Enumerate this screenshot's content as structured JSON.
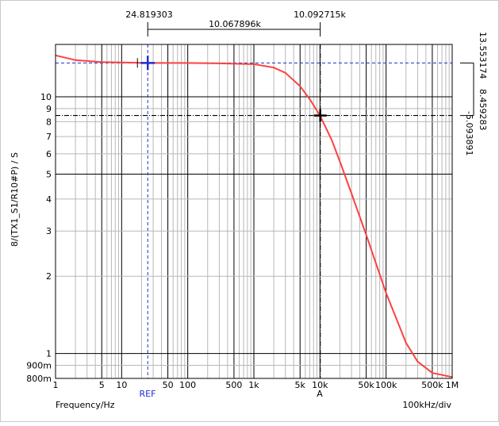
{
  "chart_data": {
    "type": "line",
    "title": "",
    "xlabel": "Frequency/Hz",
    "ylabel": "8/(TX1_S1/R10#P) / S",
    "x_scale": "log",
    "y_scale": "log",
    "xlim": [
      1,
      1000000
    ],
    "ylim": [
      0.8,
      16
    ],
    "x_div_label": "100kHz/div",
    "x_ticks": [
      {
        "value": 1,
        "label": "1"
      },
      {
        "value": 5,
        "label": "5"
      },
      {
        "value": 10,
        "label": "10"
      },
      {
        "value": 50,
        "label": "50"
      },
      {
        "value": 100,
        "label": "100"
      },
      {
        "value": 500,
        "label": "500"
      },
      {
        "value": 1000,
        "label": "1k"
      },
      {
        "value": 5000,
        "label": "5k"
      },
      {
        "value": 10000,
        "label": "10k"
      },
      {
        "value": 50000,
        "label": "50k"
      },
      {
        "value": 100000,
        "label": "100k"
      },
      {
        "value": 500000,
        "label": "500k"
      },
      {
        "value": 1000000,
        "label": "1M"
      }
    ],
    "y_ticks": [
      {
        "value": 10,
        "label": "10"
      },
      {
        "value": 9,
        "label": "9"
      },
      {
        "value": 8,
        "label": "8"
      },
      {
        "value": 7,
        "label": "7"
      },
      {
        "value": 6,
        "label": "6"
      },
      {
        "value": 5,
        "label": "5"
      },
      {
        "value": 4,
        "label": "4"
      },
      {
        "value": 3,
        "label": "3"
      },
      {
        "value": 2,
        "label": "2"
      },
      {
        "value": 1,
        "label": "1"
      },
      {
        "value": 0.9,
        "label": "900m"
      },
      {
        "value": 0.8,
        "label": "800m"
      }
    ],
    "series": [
      {
        "color": "#ff4040",
        "x": [
          1,
          2,
          5,
          10,
          24.8,
          50,
          100,
          300,
          1000,
          2000,
          3000,
          5000,
          7000,
          10000,
          15000,
          20000,
          30000,
          50000,
          100000,
          200000,
          300000,
          500000,
          1000000
        ],
        "y": [
          14.5,
          13.9,
          13.65,
          13.6,
          13.55,
          13.55,
          13.55,
          13.5,
          13.4,
          13.0,
          12.4,
          11.0,
          9.8,
          8.46,
          6.8,
          5.6,
          4.2,
          2.9,
          1.72,
          1.1,
          0.93,
          0.84,
          0.81
        ]
      }
    ],
    "cursors": {
      "ref": {
        "label": "REF",
        "x_label": "24.819303",
        "x": 24.819303,
        "y": 13.553174,
        "y_label": "13.553174",
        "color": "#1f2fd0"
      },
      "a": {
        "label": "A",
        "x_label": "10.092715k",
        "x": 10092.715,
        "y": 8.459283,
        "y_label": "8.459283",
        "color": "#000000"
      },
      "delta_x_label": "10.067896k",
      "delta_y_label": "-5.093891"
    },
    "grid": true,
    "legend": "none"
  }
}
